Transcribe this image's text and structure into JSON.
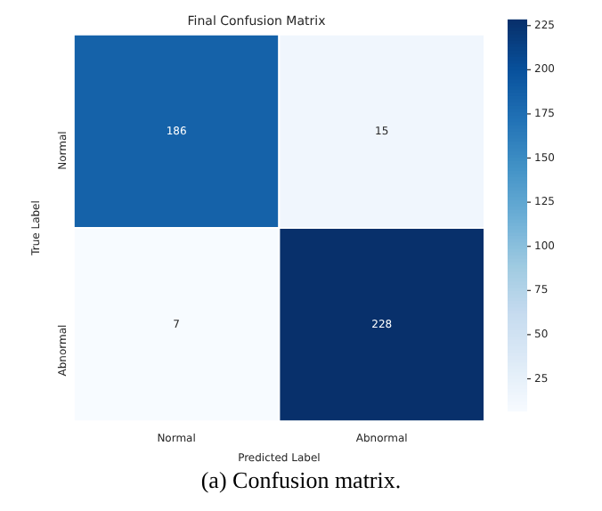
{
  "chart_data": {
    "type": "heatmap",
    "title": "Final Confusion Matrix",
    "xlabel": "Predicted Label",
    "ylabel": "True Label",
    "categories": [
      "Normal",
      "Abnormal"
    ],
    "y_categories": [
      "Normal",
      "Abnormal"
    ],
    "cells": [
      [
        186,
        15
      ],
      [
        7,
        228
      ]
    ],
    "data_labels": true,
    "clim": [
      7,
      228
    ],
    "cticks": [
      25,
      50,
      75,
      100,
      125,
      150,
      175,
      200,
      225
    ],
    "annotations": [
      "(a) Confusion matrix."
    ]
  }
}
